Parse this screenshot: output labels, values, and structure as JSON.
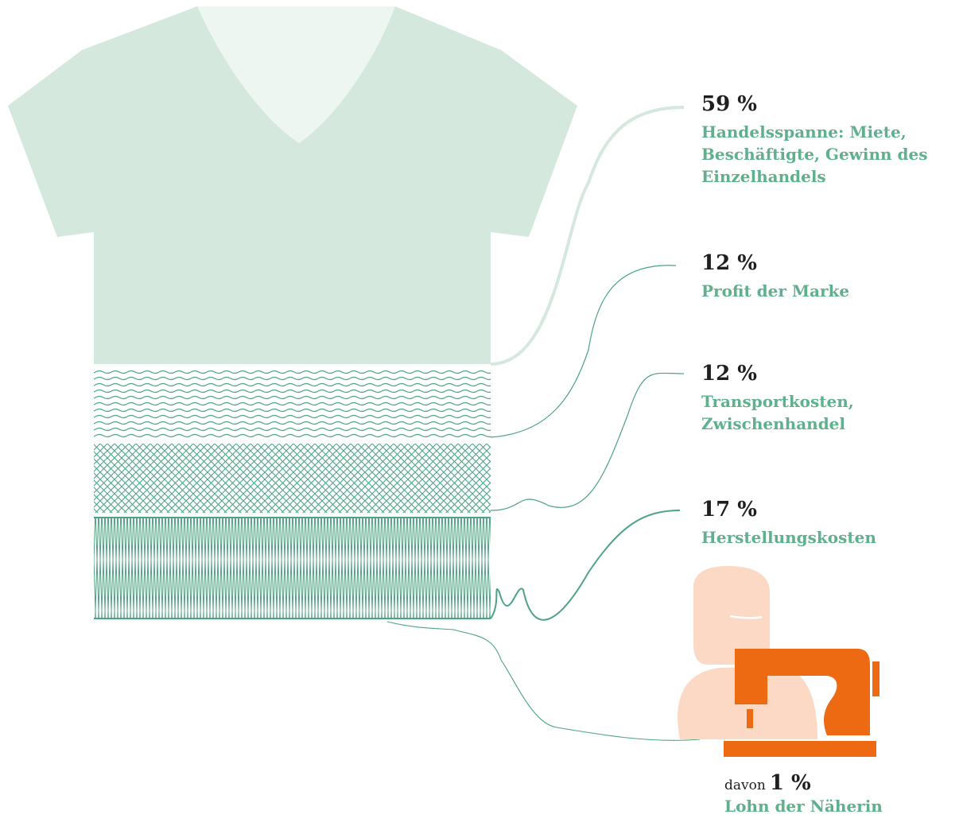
{
  "colors": {
    "shirt": "#d4e8de",
    "collar": "#eef6f2",
    "accent": "#5fb08c",
    "pattern": "#4ea383",
    "text_dark": "#1f1f1f",
    "skin": "#fbd9c4",
    "machine": "#ee6a12"
  },
  "icons": [
    "tshirt-icon",
    "seamstress-icon",
    "sewing-machine-icon"
  ],
  "chart_data": {
    "type": "stacked-shares",
    "unit": "%",
    "segments": [
      {
        "value": 59,
        "value_label": "59 %",
        "label": "Handelsspanne: Miete,\nBeschäftigte, Gewinn des\nEinzelhandels",
        "fill": "solid"
      },
      {
        "value": 12,
        "value_label": "12 %",
        "label": "Profit der Marke",
        "fill": "waves"
      },
      {
        "value": 12,
        "value_label": "12 %",
        "label": "Transportkosten,\nZwischenhandel",
        "fill": "crosshatch"
      },
      {
        "value": 17,
        "value_label": "17 %",
        "label": "Herstellungskosten",
        "fill": "zigzag"
      }
    ],
    "sub_item": {
      "prefix": "davon",
      "value": 1,
      "value_label": "1 %",
      "label": "Lohn der Näherin"
    }
  }
}
